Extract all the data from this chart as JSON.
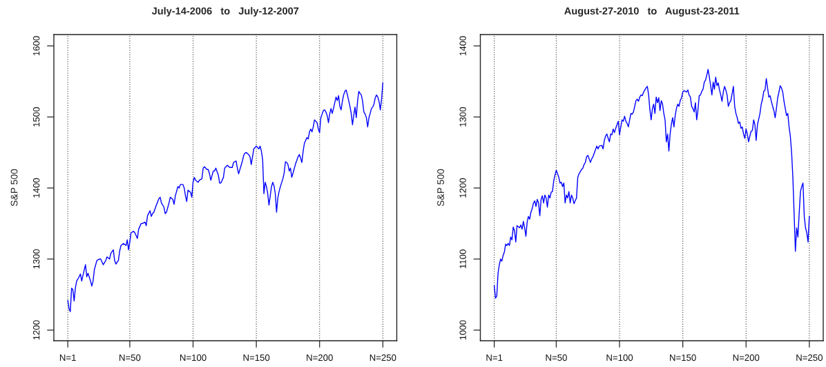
{
  "chart_data": [
    {
      "type": "line",
      "title": "July-14-2006   to   July-12-2007",
      "ylabel": "S&P 500",
      "color": "#0000ff",
      "grid": "x",
      "xlim": [
        -10,
        261
      ],
      "ylim": [
        1185,
        1616
      ],
      "xticks": [
        {
          "value": 1,
          "label": "N=1"
        },
        {
          "value": 50,
          "label": "N=50"
        },
        {
          "value": 100,
          "label": "N=100"
        },
        {
          "value": 150,
          "label": "N=150"
        },
        {
          "value": 200,
          "label": "N=200"
        },
        {
          "value": 250,
          "label": "N=250"
        }
      ],
      "yticks": [
        1200,
        1300,
        1400,
        1500,
        1600
      ],
      "x": [
        1,
        2,
        3,
        4,
        5,
        6,
        7,
        8,
        10,
        11,
        12,
        13,
        15,
        16,
        17,
        19,
        20,
        21,
        22,
        24,
        26,
        27,
        29,
        31,
        32,
        34,
        35,
        37,
        38,
        39,
        41,
        42,
        43,
        45,
        47,
        48,
        49,
        50,
        51,
        53,
        54,
        56,
        57,
        59,
        60,
        62,
        63,
        64,
        66,
        67,
        68,
        69,
        71,
        73,
        74,
        75,
        77,
        78,
        79,
        81,
        82,
        84,
        85,
        86,
        88,
        89,
        90,
        92,
        93,
        94,
        95,
        96,
        98,
        99,
        100,
        101,
        102,
        104,
        105,
        107,
        108,
        109,
        111,
        112,
        113,
        114,
        116,
        117,
        118,
        120,
        121,
        122,
        124,
        125,
        127,
        129,
        131,
        132,
        134,
        135,
        136,
        137,
        139,
        140,
        141,
        142,
        144,
        145,
        146,
        148,
        149,
        150,
        152,
        153,
        154,
        155,
        156,
        157,
        158,
        159,
        160,
        161,
        162,
        163,
        164,
        165,
        166,
        167,
        168,
        169,
        171,
        172,
        173,
        174,
        175,
        176,
        177,
        178,
        179,
        181,
        182,
        183,
        184,
        185,
        186,
        187,
        188,
        190,
        191,
        192,
        193,
        194,
        195,
        196,
        197,
        198,
        199,
        200,
        201,
        202,
        203,
        204,
        205,
        206,
        207,
        208,
        209,
        210,
        211,
        212,
        213,
        214,
        215,
        216,
        217,
        218,
        219,
        220,
        221,
        222,
        223,
        224,
        225,
        226,
        227,
        228,
        229,
        230,
        231,
        232,
        233,
        234,
        235,
        236,
        237,
        238,
        239,
        240,
        241,
        242,
        243,
        244,
        245,
        246,
        247,
        248,
        249,
        250
      ],
      "values": [
        1242,
        1230,
        1226,
        1259,
        1257,
        1241,
        1259,
        1269,
        1275,
        1279,
        1269,
        1277,
        1292,
        1275,
        1280,
        1269,
        1262,
        1269,
        1285,
        1298,
        1300,
        1300,
        1292,
        1298,
        1303,
        1300,
        1308,
        1313,
        1298,
        1293,
        1298,
        1311,
        1319,
        1322,
        1319,
        1327,
        1313,
        1324,
        1337,
        1339,
        1337,
        1329,
        1342,
        1350,
        1350,
        1352,
        1347,
        1361,
        1368,
        1360,
        1364,
        1366,
        1376,
        1385,
        1387,
        1379,
        1373,
        1364,
        1366,
        1379,
        1387,
        1384,
        1377,
        1389,
        1402,
        1400,
        1405,
        1405,
        1400,
        1389,
        1381,
        1397,
        1394,
        1387,
        1408,
        1415,
        1411,
        1408,
        1411,
        1413,
        1428,
        1430,
        1426,
        1426,
        1420,
        1411,
        1424,
        1424,
        1428,
        1418,
        1407,
        1407,
        1415,
        1428,
        1432,
        1429,
        1429,
        1436,
        1438,
        1428,
        1420,
        1426,
        1438,
        1446,
        1449,
        1450,
        1447,
        1444,
        1433,
        1455,
        1457,
        1459,
        1455,
        1459,
        1452,
        1440,
        1392,
        1408,
        1402,
        1392,
        1376,
        1389,
        1402,
        1408,
        1403,
        1392,
        1366,
        1386,
        1395,
        1402,
        1413,
        1421,
        1437,
        1436,
        1433,
        1424,
        1428,
        1415,
        1421,
        1434,
        1439,
        1444,
        1447,
        1442,
        1436,
        1452,
        1463,
        1471,
        1469,
        1479,
        1483,
        1479,
        1486,
        1496,
        1494,
        1492,
        1483,
        1478,
        1499,
        1504,
        1509,
        1510,
        1507,
        1502,
        1492,
        1504,
        1512,
        1505,
        1512,
        1520,
        1528,
        1523,
        1530,
        1515,
        1510,
        1522,
        1531,
        1536,
        1538,
        1531,
        1523,
        1515,
        1505,
        1489,
        1502,
        1514,
        1499,
        1522,
        1536,
        1533,
        1531,
        1522,
        1507,
        1504,
        1499,
        1486,
        1499,
        1505,
        1512,
        1514,
        1518,
        1527,
        1531,
        1528,
        1522,
        1510,
        1525,
        1548
      ]
    },
    {
      "type": "line",
      "title": "August-27-2010   to   August-23-2011",
      "ylabel": "S&P 500",
      "color": "#0000ff",
      "grid": "x",
      "xlim": [
        -10,
        261
      ],
      "ylim": [
        985,
        1416
      ],
      "xticks": [
        {
          "value": 1,
          "label": "N=1"
        },
        {
          "value": 50,
          "label": "N=50"
        },
        {
          "value": 100,
          "label": "N=100"
        },
        {
          "value": 150,
          "label": "N=150"
        },
        {
          "value": 200,
          "label": "N=200"
        },
        {
          "value": 250,
          "label": "N=250"
        }
      ],
      "yticks": [
        1000,
        1100,
        1200,
        1300,
        1400
      ],
      "x": [
        1,
        2,
        3,
        4,
        5,
        6,
        7,
        8,
        9,
        10,
        11,
        12,
        13,
        14,
        15,
        16,
        17,
        18,
        19,
        21,
        22,
        23,
        24,
        25,
        26,
        27,
        28,
        29,
        30,
        31,
        32,
        33,
        34,
        35,
        36,
        37,
        38,
        39,
        40,
        41,
        42,
        43,
        44,
        45,
        46,
        47,
        48,
        49,
        50,
        51,
        52,
        53,
        54,
        55,
        56,
        57,
        58,
        59,
        60,
        61,
        62,
        63,
        64,
        65,
        66,
        67,
        68,
        69,
        70,
        71,
        72,
        73,
        74,
        75,
        76,
        77,
        78,
        79,
        80,
        81,
        82,
        83,
        84,
        86,
        87,
        88,
        89,
        90,
        91,
        92,
        93,
        94,
        95,
        96,
        97,
        98,
        99,
        100,
        101,
        102,
        103,
        104,
        105,
        106,
        107,
        108,
        109,
        110,
        111,
        112,
        113,
        114,
        115,
        116,
        117,
        118,
        119,
        120,
        121,
        122,
        123,
        124,
        125,
        126,
        127,
        128,
        129,
        130,
        131,
        132,
        133,
        134,
        135,
        136,
        137,
        138,
        139,
        140,
        141,
        142,
        143,
        144,
        145,
        146,
        147,
        148,
        149,
        150,
        151,
        152,
        153,
        154,
        155,
        156,
        157,
        158,
        159,
        160,
        161,
        162,
        163,
        164,
        165,
        166,
        167,
        168,
        169,
        170,
        171,
        172,
        173,
        174,
        175,
        176,
        177,
        178,
        179,
        180,
        181,
        182,
        183,
        184,
        185,
        186,
        187,
        188,
        189,
        190,
        191,
        192,
        193,
        194,
        195,
        196,
        197,
        198,
        199,
        200,
        201,
        202,
        203,
        204,
        205,
        206,
        207,
        208,
        209,
        210,
        211,
        212,
        213,
        214,
        215,
        216,
        217,
        218,
        219,
        220,
        221,
        222,
        223,
        224,
        225,
        226,
        227,
        228,
        229,
        230,
        231,
        232,
        233,
        234,
        235,
        236,
        237,
        238,
        239,
        240,
        241,
        242,
        243,
        244,
        245,
        246,
        247,
        248,
        249,
        250
      ],
      "values": [
        1063,
        1045,
        1048,
        1080,
        1092,
        1100,
        1097,
        1105,
        1110,
        1121,
        1119,
        1122,
        1119,
        1131,
        1127,
        1145,
        1140,
        1124,
        1147,
        1144,
        1148,
        1142,
        1153,
        1144,
        1132,
        1152,
        1160,
        1156,
        1166,
        1171,
        1179,
        1182,
        1174,
        1184,
        1179,
        1161,
        1184,
        1189,
        1179,
        1190,
        1186,
        1173,
        1190,
        1186,
        1194,
        1195,
        1210,
        1218,
        1225,
        1220,
        1215,
        1207,
        1208,
        1202,
        1207,
        1179,
        1190,
        1186,
        1195,
        1179,
        1190,
        1186,
        1178,
        1182,
        1186,
        1215,
        1220,
        1223,
        1226,
        1228,
        1233,
        1236,
        1244,
        1246,
        1241,
        1236,
        1241,
        1244,
        1249,
        1254,
        1259,
        1255,
        1259,
        1260,
        1255,
        1267,
        1273,
        1276,
        1270,
        1265,
        1276,
        1275,
        1283,
        1278,
        1284,
        1289,
        1294,
        1275,
        1286,
        1296,
        1294,
        1301,
        1294,
        1291,
        1286,
        1296,
        1305,
        1304,
        1307,
        1315,
        1323,
        1325,
        1322,
        1328,
        1331,
        1330,
        1335,
        1338,
        1341,
        1343,
        1331,
        1310,
        1296,
        1312,
        1318,
        1305,
        1328,
        1320,
        1327,
        1309,
        1323,
        1318,
        1305,
        1296,
        1265,
        1276,
        1252,
        1276,
        1290,
        1299,
        1286,
        1302,
        1312,
        1318,
        1315,
        1323,
        1327,
        1335,
        1337,
        1336,
        1335,
        1338,
        1331,
        1328,
        1315,
        1312,
        1307,
        1320,
        1296,
        1310,
        1330,
        1331,
        1336,
        1339,
        1349,
        1352,
        1359,
        1367,
        1356,
        1344,
        1331,
        1349,
        1339,
        1356,
        1344,
        1348,
        1338,
        1331,
        1322,
        1335,
        1343,
        1338,
        1331,
        1315,
        1320,
        1323,
        1333,
        1343,
        1315,
        1305,
        1299,
        1291,
        1293,
        1284,
        1286,
        1276,
        1270,
        1283,
        1276,
        1265,
        1273,
        1280,
        1281,
        1296,
        1289,
        1267,
        1289,
        1297,
        1305,
        1318,
        1325,
        1336,
        1338,
        1354,
        1341,
        1328,
        1330,
        1322,
        1315,
        1309,
        1299,
        1312,
        1327,
        1335,
        1344,
        1341,
        1335,
        1322,
        1312,
        1302,
        1305,
        1286,
        1273,
        1250,
        1215,
        1163,
        1111,
        1144,
        1131,
        1165,
        1195,
        1202,
        1207,
        1160,
        1144,
        1137,
        1124,
        1160
      ]
    }
  ]
}
